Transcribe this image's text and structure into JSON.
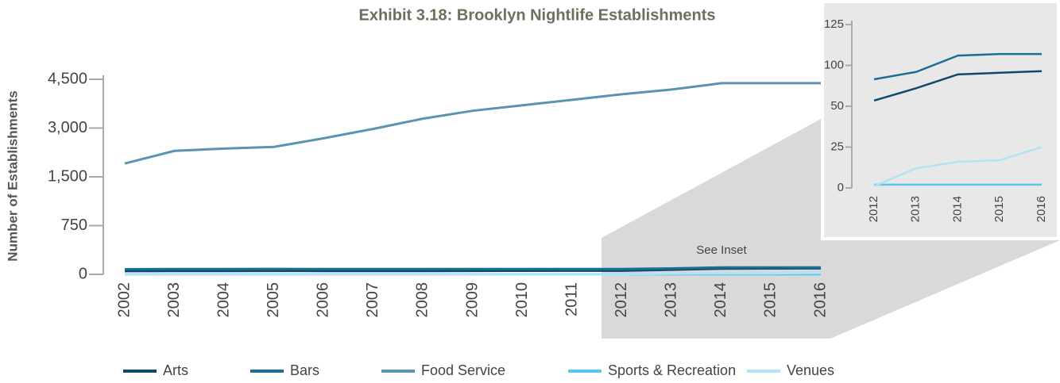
{
  "chart_data": [
    {
      "type": "line",
      "title": "Exhibit 3.18: Brooklyn Nightlife Establishments",
      "y_label": "Number of Establishments",
      "annotation": "See Inset",
      "categories": [
        "2002",
        "2003",
        "2004",
        "2005",
        "2006",
        "2007",
        "2008",
        "2009",
        "2010",
        "2011",
        "2012",
        "2013",
        "2014",
        "2015",
        "2016"
      ],
      "series": [
        {
          "name": "Arts",
          "color": "#0d4a6b",
          "values": [
            50,
            52,
            52,
            54,
            52,
            52,
            52,
            54,
            55,
            56,
            57,
            72,
            89,
            91,
            93
          ]
        },
        {
          "name": "Bars",
          "color": "#1c6f94",
          "values": [
            80,
            82,
            82,
            84,
            82,
            82,
            82,
            82,
            82,
            82,
            83,
            92,
            106,
            107,
            107
          ]
        },
        {
          "name": "Food Service",
          "color": "#5b93b3",
          "values": [
            1911,
            2298,
            2370,
            2420,
            2685,
            2976,
            3290,
            3532,
            3700,
            3870,
            4040,
            4185,
            4380,
            4380,
            4380
          ]
        },
        {
          "name": "Sports & Recreation",
          "color": "#5bc4ec",
          "values": [
            2,
            2,
            2,
            2,
            2,
            2,
            2,
            2,
            2,
            2,
            2,
            2,
            2,
            2,
            2
          ]
        },
        {
          "name": "Venues",
          "color": "#b4e2f5",
          "values": [
            1,
            1,
            1,
            1,
            1,
            1,
            1,
            1,
            1,
            1,
            1,
            12,
            16,
            17,
            25
          ]
        }
      ],
      "ylim": [
        0,
        4500
      ],
      "yticks": [
        0,
        750,
        {
          "value": 1500,
          "label": "1,500"
        },
        {
          "value": 3000,
          "label": "3,000"
        },
        {
          "value": 4500,
          "label": "4,500"
        }
      ],
      "legend": "bottom"
    },
    {
      "type": "line",
      "categories": [
        "2012",
        "2013",
        "2014",
        "2015",
        "2016"
      ],
      "series": [
        {
          "name": "Arts",
          "color": "#0d4a6b",
          "values": [
            57,
            72,
            89,
            91,
            93
          ]
        },
        {
          "name": "Bars",
          "color": "#1c6f94",
          "values": [
            83,
            92,
            106,
            107,
            107
          ]
        },
        {
          "name": "Sports & Recreation",
          "color": "#5bc4ec",
          "values": [
            2,
            2,
            2,
            2,
            2
          ]
        },
        {
          "name": "Venues",
          "color": "#b4e2f5",
          "values": [
            1,
            12,
            16,
            17,
            25
          ]
        }
      ],
      "ylim": [
        0,
        125
      ],
      "yticks": [
        0,
        25,
        50,
        100,
        125
      ]
    }
  ]
}
